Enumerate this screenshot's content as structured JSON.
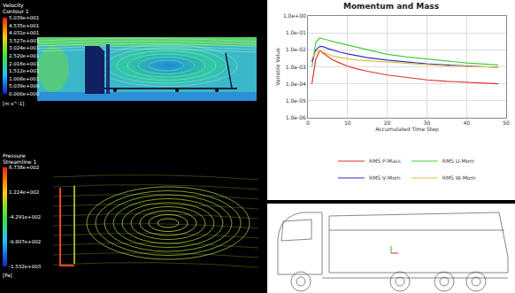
{
  "velocity_panel": {
    "title": [
      "Velocity",
      "Contour 1"
    ],
    "legend_values": [
      "5.039e+001",
      "4.535e+001",
      "4.031e+001",
      "3.527e+001",
      "3.024e+001",
      "2.520e+001",
      "2.016e+001",
      "1.512e+001",
      "1.008e+001",
      "5.039e+000",
      "0.000e+000"
    ],
    "unit": "[m s^-1]"
  },
  "pressure_panel": {
    "title": [
      "Pressure",
      "Streamline 1"
    ],
    "legend_values": [
      "6.738e+002",
      "1.224e+002",
      "-4.291e+002",
      "-9.807e+002",
      "-1.532e+003"
    ],
    "unit": "[Pa]"
  },
  "chart_data": {
    "type": "line",
    "title": "Momentum and Mass",
    "x_label": "Accumulated Time Step",
    "y_label": "Variable Value",
    "x": [
      1,
      2,
      3,
      4,
      5,
      6,
      8,
      10,
      12,
      15,
      20,
      25,
      30,
      35,
      40,
      45,
      48
    ],
    "series": [
      {
        "name": "RMS P-Mass",
        "color": "#e03030",
        "values": [
          0.0001,
          0.003,
          0.009,
          0.006,
          0.004,
          0.0028,
          0.0017,
          0.0011,
          0.0008,
          0.00055,
          0.00033,
          0.00023,
          0.00017,
          0.00014,
          0.00012,
          0.000105,
          0.0001
        ]
      },
      {
        "name": "RMS U-Mom",
        "color": "#40d040",
        "values": [
          0.001,
          0.03,
          0.05,
          0.045,
          0.038,
          0.032,
          0.025,
          0.019,
          0.015,
          0.01,
          0.0055,
          0.0038,
          0.0028,
          0.0022,
          0.0017,
          0.0014,
          0.0013
        ]
      },
      {
        "name": "RMS V-Mom",
        "color": "#3030d0",
        "values": [
          0.002,
          0.01,
          0.016,
          0.015,
          0.012,
          0.01,
          0.0075,
          0.0058,
          0.0046,
          0.0035,
          0.0025,
          0.0019,
          0.0015,
          0.0013,
          0.0011,
          0.001,
          0.00095
        ]
      },
      {
        "name": "RMS W-Mom",
        "color": "#e0c040",
        "values": [
          0.003,
          0.008,
          0.009,
          0.007,
          0.0055,
          0.0045,
          0.0036,
          0.003,
          0.0026,
          0.0023,
          0.0019,
          0.0016,
          0.0013,
          0.00115,
          0.00105,
          0.001,
          0.00095
        ]
      }
    ],
    "log": "y",
    "xlim": [
      0,
      50
    ],
    "xticks": [
      0,
      10,
      20,
      30,
      40,
      50
    ],
    "ylim": [
      1e-06,
      1
    ],
    "yticks": [
      {
        "value": 1,
        "label": "1.0e+00"
      },
      {
        "value": 0.1,
        "label": "1.0e-01"
      },
      {
        "value": 0.01,
        "label": "1.0e-02"
      },
      {
        "value": 0.001,
        "label": "1.0e-03"
      },
      {
        "value": 0.0001,
        "label": "1.0e-04"
      },
      {
        "value": 1e-05,
        "label": "1.0e-05"
      },
      {
        "value": 1e-06,
        "label": "1.0e-06"
      }
    ],
    "grid": true,
    "legend": "bottom"
  }
}
